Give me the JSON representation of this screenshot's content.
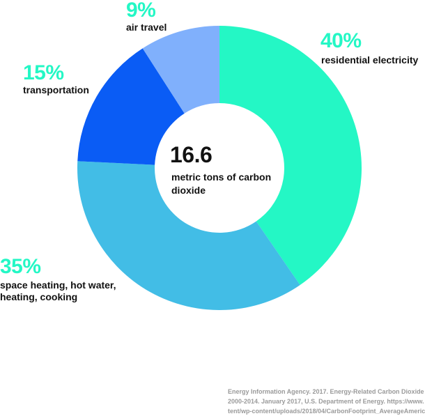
{
  "chart_data": {
    "type": "pie",
    "subtype": "donut",
    "total": {
      "value": "16.6",
      "unit": "metric tons of carbon dioxide"
    },
    "slices": [
      {
        "label": "residential electricity",
        "percent_label": "40%",
        "value": 40,
        "color": "#24f7c5",
        "label_color": "#24f7c5"
      },
      {
        "label": "space heating, hot water, heating, cooking",
        "percent_label": "35%",
        "value": 35,
        "color": "#42bde6",
        "label_color": "#24f7c5"
      },
      {
        "label": "transportation",
        "percent_label": "15%",
        "value": 15,
        "color": "#0a5cf5",
        "label_color": "#24f7c5"
      },
      {
        "label": "air travel",
        "percent_label": "9%",
        "value": 9,
        "color": "#80b0fc",
        "label_color": "#24f7c5"
      }
    ]
  },
  "source": {
    "lines": [
      "Energy Information Agency. 2017. Energy-Related Carbon Dioxide",
      "2000-2014. January 2017, U.S. Department of Energy. https://www.",
      "tent/wp-content/uploads/2018/04/CarbonFootprint_AverageAmeric"
    ]
  }
}
